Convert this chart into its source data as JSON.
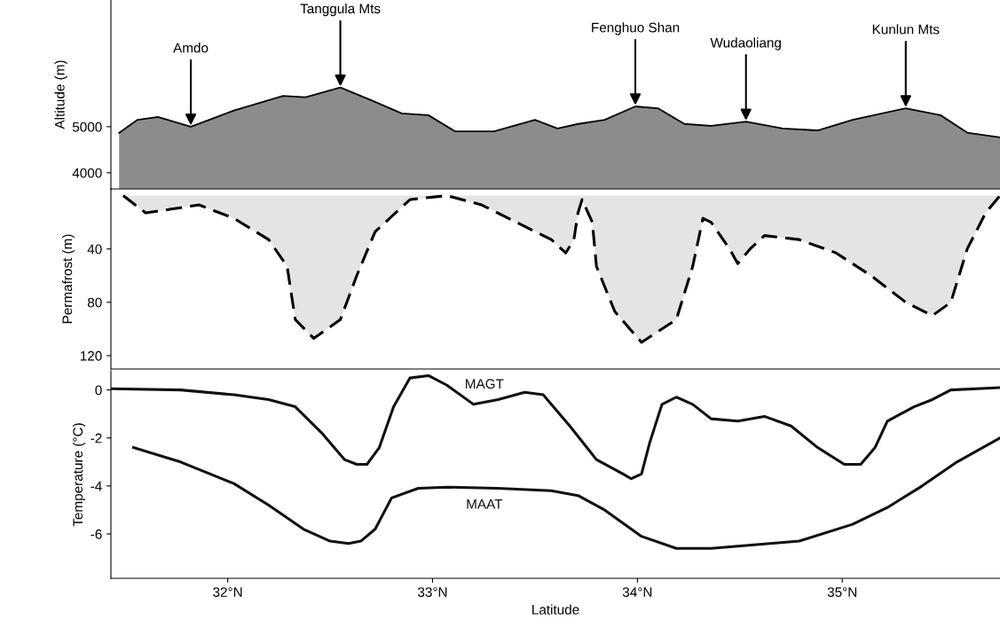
{
  "chart_data": [
    {
      "type": "area",
      "ylabel": "Altitude (m)",
      "xlim": [
        31.43,
        35.77
      ],
      "ylim": [
        3650,
        7750
      ],
      "yticks": [
        4000,
        5000
      ],
      "tick_labels": "y",
      "x": [
        31.47,
        31.56,
        31.66,
        31.82,
        32.03,
        32.27,
        32.38,
        32.55,
        32.72,
        32.85,
        32.98,
        33.11,
        33.3,
        33.5,
        33.61,
        33.71,
        33.84,
        33.99,
        34.1,
        34.23,
        34.36,
        34.53,
        34.71,
        34.88,
        35.05,
        35.31,
        35.48,
        35.61,
        35.77
      ],
      "series": [
        {
          "color": "#8c8c8c",
          "values": [
            4870,
            5150,
            5210,
            5000,
            5350,
            5670,
            5640,
            5850,
            5540,
            5290,
            5250,
            4900,
            4900,
            5150,
            4960,
            5060,
            5150,
            5440,
            5400,
            5060,
            5020,
            5110,
            4960,
            4920,
            5150,
            5400,
            5250,
            4870,
            4770
          ]
        }
      ],
      "annotations": [
        {
          "text": "Amdo",
          "x": 31.82,
          "y": 5000
        },
        {
          "text": "Tanggula Mts",
          "x": 32.55,
          "y": 5850
        },
        {
          "text": "Fenghuo Shan",
          "x": 33.99,
          "y": 5440
        },
        {
          "text": "Wudaoliang",
          "x": 34.53,
          "y": 5110
        },
        {
          "text": "Kunlun Mts",
          "x": 35.31,
          "y": 5400
        }
      ]
    },
    {
      "type": "area",
      "ylabel": "Permafrost (m)",
      "xlim": [
        31.43,
        35.77
      ],
      "ylim": [
        130,
        -5
      ],
      "yticks": [
        40,
        80,
        120
      ],
      "tick_labels": "y",
      "line_style": "dashed",
      "x": [
        31.49,
        31.6,
        31.73,
        31.86,
        32.03,
        32.2,
        32.29,
        32.33,
        32.42,
        32.55,
        32.63,
        32.72,
        32.89,
        33.07,
        33.24,
        33.41,
        33.58,
        33.65,
        33.69,
        33.71,
        33.73,
        33.78,
        33.8,
        33.89,
        34.02,
        34.19,
        34.27,
        34.32,
        34.36,
        34.45,
        34.49,
        34.55,
        34.62,
        34.79,
        34.97,
        35.14,
        35.31,
        35.44,
        35.53,
        35.61,
        35.7,
        35.77
      ],
      "series": [
        {
          "color": "#e4e4e4",
          "values": [
            0,
            13,
            10,
            7,
            17,
            33,
            53,
            93,
            107,
            93,
            60,
            27,
            3,
            0,
            7,
            20,
            33,
            43,
            33,
            13,
            3,
            20,
            53,
            87,
            110,
            93,
            53,
            17,
            20,
            40,
            51,
            40,
            30,
            33,
            43,
            60,
            80,
            90,
            80,
            40,
            13,
            0
          ]
        }
      ]
    },
    {
      "type": "line",
      "ylabel": "Temperature (°C)",
      "xlabel": "Latitude",
      "xlim": [
        31.43,
        35.77
      ],
      "ylim": [
        -7.85,
        0.8
      ],
      "yticks": [
        -6,
        -4,
        -2,
        0
      ],
      "xticks": [
        {
          "value": 32,
          "label": "32°N"
        },
        {
          "value": 33,
          "label": "33°N"
        },
        {
          "value": 34,
          "label": "34°N"
        },
        {
          "value": 35,
          "label": "35°N"
        }
      ],
      "series": [
        {
          "name": "MAGT",
          "color": "#111111",
          "x": [
            31.43,
            31.77,
            32.03,
            32.2,
            32.33,
            32.46,
            32.57,
            32.63,
            32.68,
            32.74,
            32.81,
            32.89,
            32.98,
            33.07,
            33.2,
            33.32,
            33.45,
            33.54,
            33.67,
            33.8,
            33.93,
            33.97,
            34.02,
            34.06,
            34.12,
            34.19,
            34.27,
            34.36,
            34.49,
            34.62,
            34.75,
            34.88,
            35.01,
            35.09,
            35.16,
            35.22,
            35.35,
            35.44,
            35.53,
            35.77
          ],
          "values": [
            0.05,
            0,
            -0.2,
            -0.4,
            -0.7,
            -1.8,
            -2.9,
            -3.1,
            -3.1,
            -2.4,
            -0.7,
            0.5,
            0.6,
            0.2,
            -0.6,
            -0.4,
            -0.1,
            -0.2,
            -1.5,
            -2.9,
            -3.5,
            -3.7,
            -3.5,
            -2.2,
            -0.6,
            -0.3,
            -0.6,
            -1.2,
            -1.3,
            -1.1,
            -1.5,
            -2.4,
            -3.1,
            -3.1,
            -2.4,
            -1.3,
            -0.7,
            -0.4,
            0,
            0.1
          ]
        },
        {
          "name": "MAAT",
          "color": "#111111",
          "x": [
            31.54,
            31.77,
            32.03,
            32.2,
            32.37,
            32.5,
            32.59,
            32.65,
            32.72,
            32.8,
            32.93,
            33.07,
            33.32,
            33.58,
            33.71,
            33.84,
            34.02,
            34.19,
            34.36,
            34.79,
            35.05,
            35.22,
            35.39,
            35.56,
            35.77
          ],
          "values": [
            -2.4,
            -3.0,
            -3.9,
            -4.8,
            -5.8,
            -6.3,
            -6.4,
            -6.3,
            -5.8,
            -4.5,
            -4.1,
            -4.05,
            -4.1,
            -4.2,
            -4.4,
            -5.0,
            -6.1,
            -6.6,
            -6.6,
            -6.3,
            -5.6,
            -4.9,
            -4.0,
            -3.0,
            -2.0
          ]
        }
      ]
    }
  ]
}
